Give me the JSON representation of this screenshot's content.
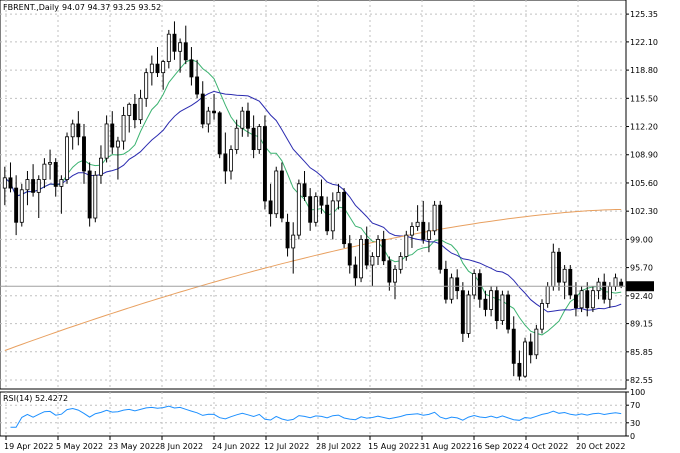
{
  "window": {
    "title": "FBRENT.,Daily",
    "ohlc": "94.07 94.37 93.25 93.52"
  },
  "colors": {
    "background": "#ffffff",
    "grid": "#c0c0c0",
    "candle": "#000000",
    "ma_fast": "#3cb371",
    "ma_mid": "#2b2bb0",
    "ma_slow": "#e8a060",
    "rsi": "#1e90ff",
    "current_price_bg": "#000000",
    "current_price_fg": "#ffffff"
  },
  "chart_data": {
    "type": "candlestick",
    "title": "FBRENT.,Daily",
    "symbol": "FBRENT.",
    "timeframe": "Daily",
    "last_ohlc": {
      "open": 94.07,
      "high": 94.37,
      "low": 93.25,
      "close": 93.52
    },
    "current_price_label": "93.52",
    "price_axis_ticks": [
      "125.35",
      "122.10",
      "118.80",
      "115.50",
      "112.20",
      "108.90",
      "105.60",
      "102.30",
      "99.00",
      "95.70",
      "92.40",
      "89.15",
      "85.85",
      "82.55"
    ],
    "ylim": [
      81.5,
      127.0
    ],
    "date_axis_ticks": [
      "19 Apr 2022",
      "5 May 2022",
      "23 May 2022",
      "8 Jun 2022",
      "24 Jun 2022",
      "12 Jul 2022",
      "28 Jul 2022",
      "15 Aug 2022",
      "31 Aug 2022",
      "16 Sep 2022",
      "4 Oct 2022",
      "20 Oct 2022"
    ],
    "candles": [
      [
        105.0,
        107.5,
        103.0,
        106.2
      ],
      [
        106.2,
        108.0,
        104.5,
        105.0
      ],
      [
        105.0,
        106.5,
        99.5,
        101.0
      ],
      [
        101.0,
        105.5,
        100.5,
        104.8
      ],
      [
        104.8,
        107.0,
        103.0,
        106.0
      ],
      [
        106.0,
        107.8,
        104.0,
        104.5
      ],
      [
        104.5,
        106.5,
        101.5,
        106.0
      ],
      [
        106.0,
        108.5,
        105.0,
        107.8
      ],
      [
        107.8,
        109.5,
        106.0,
        108.0
      ],
      [
        108.0,
        108.5,
        104.0,
        105.2
      ],
      [
        105.2,
        106.5,
        102.0,
        106.0
      ],
      [
        106.0,
        111.5,
        105.5,
        111.0
      ],
      [
        111.0,
        113.0,
        109.5,
        112.5
      ],
      [
        112.5,
        114.0,
        110.0,
        111.0
      ],
      [
        111.0,
        112.5,
        105.5,
        107.0
      ],
      [
        107.0,
        108.0,
        100.5,
        101.5
      ],
      [
        101.5,
        107.0,
        101.0,
        106.5
      ],
      [
        106.5,
        110.0,
        105.5,
        108.5
      ],
      [
        108.5,
        113.5,
        108.0,
        112.5
      ],
      [
        112.5,
        114.0,
        109.0,
        109.8
      ],
      [
        109.8,
        111.0,
        106.0,
        110.5
      ],
      [
        110.5,
        114.5,
        109.5,
        113.5
      ],
      [
        113.5,
        115.0,
        111.5,
        114.8
      ],
      [
        114.8,
        116.0,
        112.0,
        113.0
      ],
      [
        113.0,
        116.5,
        112.5,
        115.5
      ],
      [
        115.5,
        119.0,
        114.5,
        118.5
      ],
      [
        118.5,
        120.5,
        117.0,
        119.5
      ],
      [
        119.5,
        121.5,
        118.0,
        118.5
      ],
      [
        118.5,
        120.0,
        116.5,
        119.8
      ],
      [
        119.8,
        123.5,
        119.0,
        123.0
      ],
      [
        123.0,
        124.5,
        120.0,
        121.0
      ],
      [
        121.0,
        122.5,
        118.5,
        122.0
      ],
      [
        122.0,
        124.0,
        119.5,
        120.0
      ],
      [
        120.0,
        121.5,
        117.0,
        118.0
      ],
      [
        118.0,
        120.0,
        115.5,
        116.0
      ],
      [
        116.0,
        117.5,
        112.0,
        112.5
      ],
      [
        112.5,
        114.5,
        111.5,
        114.0
      ],
      [
        114.0,
        116.0,
        113.0,
        113.8
      ],
      [
        113.8,
        114.0,
        108.5,
        109.0
      ],
      [
        109.0,
        111.5,
        105.5,
        107.0
      ],
      [
        107.0,
        110.0,
        106.0,
        109.5
      ],
      [
        109.5,
        113.0,
        109.0,
        112.0
      ],
      [
        112.0,
        114.5,
        111.0,
        114.0
      ],
      [
        114.0,
        115.0,
        111.0,
        112.0
      ],
      [
        112.0,
        113.5,
        108.5,
        109.5
      ],
      [
        109.5,
        112.5,
        109.0,
        112.2
      ],
      [
        112.2,
        113.5,
        102.5,
        103.5
      ],
      [
        103.5,
        105.5,
        100.5,
        102.0
      ],
      [
        102.0,
        107.5,
        101.5,
        107.0
      ],
      [
        107.0,
        108.0,
        101.0,
        101.5
      ],
      [
        101.0,
        102.0,
        97.0,
        98.0
      ],
      [
        98.0,
        101.0,
        95.0,
        99.5
      ],
      [
        99.5,
        106.0,
        99.0,
        105.5
      ],
      [
        105.5,
        107.0,
        103.5,
        104.0
      ],
      [
        104.0,
        105.0,
        100.0,
        101.0
      ],
      [
        101.0,
        104.5,
        100.5,
        104.0
      ],
      [
        104.0,
        106.0,
        102.0,
        103.0
      ],
      [
        103.0,
        104.0,
        99.5,
        100.0
      ],
      [
        100.0,
        104.5,
        99.0,
        103.5
      ],
      [
        103.5,
        105.5,
        102.5,
        104.5
      ],
      [
        104.5,
        105.0,
        98.0,
        98.5
      ],
      [
        98.5,
        99.5,
        95.0,
        96.0
      ],
      [
        96.0,
        97.0,
        93.5,
        94.5
      ],
      [
        94.5,
        99.5,
        94.0,
        99.0
      ],
      [
        99.0,
        100.5,
        95.5,
        96.0
      ],
      [
        96.0,
        97.5,
        93.5,
        97.0
      ],
      [
        97.0,
        99.5,
        96.0,
        99.0
      ],
      [
        99.0,
        100.0,
        96.0,
        96.5
      ],
      [
        96.5,
        97.0,
        93.0,
        94.0
      ],
      [
        94.0,
        96.0,
        92.0,
        95.5
      ],
      [
        95.5,
        97.5,
        95.0,
        97.0
      ],
      [
        97.0,
        100.0,
        96.5,
        99.5
      ],
      [
        99.5,
        101.0,
        98.0,
        100.5
      ],
      [
        100.5,
        103.0,
        100.0,
        101.0
      ],
      [
        101.0,
        103.5,
        98.5,
        99.0
      ],
      [
        99.0,
        101.0,
        97.5,
        100.0
      ],
      [
        100.0,
        103.5,
        99.5,
        103.0
      ],
      [
        103.0,
        103.5,
        95.0,
        95.5
      ],
      [
        95.5,
        96.5,
        91.5,
        92.0
      ],
      [
        92.0,
        95.0,
        91.5,
        94.5
      ],
      [
        94.5,
        95.5,
        92.0,
        93.0
      ],
      [
        93.0,
        94.0,
        87.0,
        88.0
      ],
      [
        88.0,
        93.0,
        87.5,
        92.5
      ],
      [
        92.5,
        95.5,
        92.0,
        95.0
      ],
      [
        95.0,
        95.5,
        91.0,
        92.0
      ],
      [
        92.0,
        93.0,
        90.0,
        90.8
      ],
      [
        90.8,
        93.5,
        90.0,
        93.0
      ],
      [
        93.0,
        93.5,
        88.5,
        89.5
      ],
      [
        89.5,
        93.0,
        89.0,
        92.5
      ],
      [
        92.5,
        93.0,
        88.0,
        88.5
      ],
      [
        88.5,
        90.0,
        83.0,
        84.5
      ],
      [
        84.5,
        86.0,
        82.5,
        83.0
      ],
      [
        83.0,
        87.5,
        82.8,
        87.0
      ],
      [
        87.0,
        88.0,
        84.5,
        85.5
      ],
      [
        85.5,
        89.0,
        85.0,
        88.5
      ],
      [
        88.5,
        92.0,
        88.0,
        91.5
      ],
      [
        91.5,
        94.0,
        91.0,
        93.5
      ],
      [
        93.5,
        98.5,
        93.0,
        97.5
      ],
      [
        97.5,
        98.0,
        93.0,
        94.0
      ],
      [
        94.0,
        96.0,
        92.0,
        95.5
      ],
      [
        95.5,
        96.0,
        92.0,
        92.5
      ],
      [
        92.5,
        94.0,
        90.0,
        91.0
      ],
      [
        91.0,
        93.5,
        90.5,
        93.0
      ],
      [
        93.0,
        94.0,
        90.0,
        91.0
      ],
      [
        91.0,
        93.5,
        90.5,
        93.0
      ],
      [
        93.0,
        94.5,
        92.0,
        94.0
      ],
      [
        94.0,
        95.0,
        91.5,
        92.0
      ],
      [
        92.0,
        94.0,
        91.0,
        93.5
      ],
      [
        93.5,
        95.0,
        93.0,
        94.5
      ],
      [
        94.0,
        94.4,
        93.3,
        93.5
      ]
    ],
    "indicator": {
      "name": "RSI(14)",
      "label": "RSI(14) 52.4272",
      "value": 52.4272,
      "ticks": [
        "100",
        "70",
        "30",
        "0"
      ],
      "levels": [
        70,
        30
      ]
    },
    "moving_averages": [
      {
        "period": 9
      },
      {
        "period": 20
      },
      {
        "period": 200
      }
    ],
    "grid": true
  }
}
